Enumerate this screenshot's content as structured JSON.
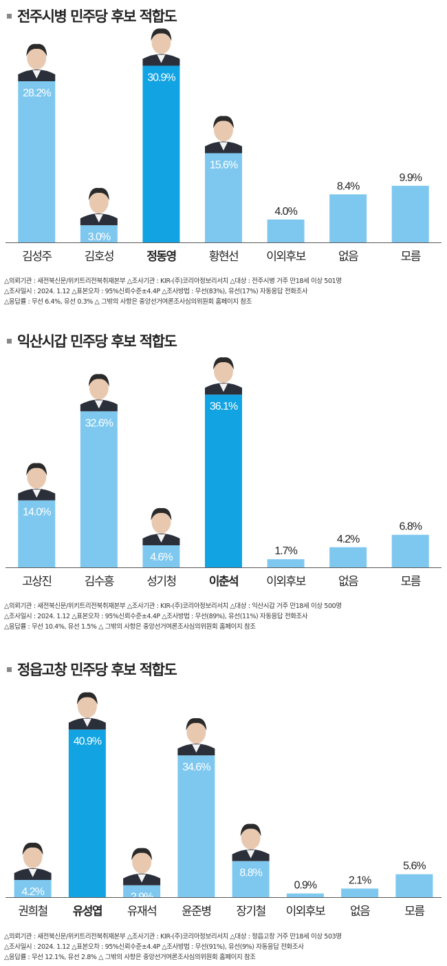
{
  "charts": [
    {
      "title": "전주시병 민주당 후보 적합도",
      "chart_data": {
        "type": "bar",
        "title": "전주시병 민주당 후보 적합도",
        "categories": [
          "김성주",
          "김호성",
          "정동영",
          "황현선",
          "이외후보",
          "없음",
          "모름"
        ],
        "values": [
          28.2,
          3.0,
          30.9,
          15.6,
          4.0,
          8.4,
          9.9
        ],
        "value_labels": [
          "28.2%",
          "3.0%",
          "30.9%",
          "15.6%",
          "4.0%",
          "8.4%",
          "9.9%"
        ],
        "highlight_index": 2,
        "colors": {
          "bar": "#7ec8ef",
          "highlight": "#12a3e2",
          "label_inside": "#ffffff",
          "label_outside": "#222222"
        },
        "photo_candidates": [
          0,
          1,
          2,
          3
        ]
      },
      "notes": [
        "△의뢰기관 : 새전북신문/위키트리전북취재본부 △조사기관 : KIR-(주)코리아정보리서치 △대상 : 전주시병 거주 만18세 이상 501명",
        "△조사일시 : 2024. 1.12 △표본오차 : 95%신뢰수준±4.4P △조사방법 : 무선(83%), 유선(17%) 자동응답 전화조사",
        "△응답률 : 무선 6.4%, 유선 0.3% △ 그밖의 사항은 중앙선거여론조사심의위원회 홈페이지 참조"
      ]
    },
    {
      "title": "익산시갑 민주당 후보 적합도",
      "chart_data": {
        "type": "bar",
        "title": "익산시갑 민주당 후보 적합도",
        "categories": [
          "고상진",
          "김수흥",
          "성기청",
          "이춘석",
          "이외후보",
          "없음",
          "모름"
        ],
        "values": [
          14.0,
          32.6,
          4.6,
          36.1,
          1.7,
          4.2,
          6.8
        ],
        "value_labels": [
          "14.0%",
          "32.6%",
          "4.6%",
          "36.1%",
          "1.7%",
          "4.2%",
          "6.8%"
        ],
        "highlight_index": 3,
        "colors": {
          "bar": "#7ec8ef",
          "highlight": "#12a3e2",
          "label_inside": "#ffffff",
          "label_outside": "#222222"
        },
        "photo_candidates": [
          0,
          1,
          2,
          3
        ]
      },
      "notes": [
        "△의뢰기관 : 새전북신문/위키트리전북취재본부 △조사기관 : KIR-(주)코리아정보리서치 △대상 : 익산시갑 거주 만18세 이상 500명",
        "△조사일시 : 2024. 1.12 △표본오차 : 95%신뢰수준±4.4P △조사방법 : 무선(89%), 유선(11%) 자동응답 전화조사",
        "△응답률 : 무선 10.4%, 유선 1.5% △ 그밖의 사항은 중앙선거여론조사심의위원회 홈페이지 참조"
      ]
    },
    {
      "title": "정읍고창 민주당 후보 적합도",
      "chart_data": {
        "type": "bar",
        "title": "정읍고창 민주당 후보 적합도",
        "categories": [
          "권희철",
          "유성엽",
          "유재석",
          "윤준병",
          "장기철",
          "이외후보",
          "없음",
          "모름"
        ],
        "values": [
          4.2,
          40.9,
          2.9,
          34.6,
          8.8,
          0.9,
          2.1,
          5.6
        ],
        "value_labels": [
          "4.2%",
          "40.9%",
          "2.9%",
          "34.6%",
          "8.8%",
          "0.9%",
          "2.1%",
          "5.6%"
        ],
        "highlight_index": 1,
        "colors": {
          "bar": "#7ec8ef",
          "highlight": "#12a3e2",
          "label_inside": "#ffffff",
          "label_outside": "#222222"
        },
        "photo_candidates": [
          0,
          1,
          2,
          3,
          4
        ]
      },
      "notes": [
        "△의뢰기관 : 새전북신문/위키트리전북취재본부 △조사기관 : KIR-(주)코리아정보리서치 △대상 : 정읍고창 거주 만18세 이상 503명",
        "△조사일시 : 2024. 1.12 △표본오차 : 95%신뢰수준±4.4P △조사방법 : 무선(91%), 유선(9%) 자동응답 전화조사",
        "△응답률 : 무선 12.1%, 유선 2.8% △ 그밖의 사항은 중앙선거여론조사심의위원회 홈페이지 참조"
      ]
    }
  ]
}
